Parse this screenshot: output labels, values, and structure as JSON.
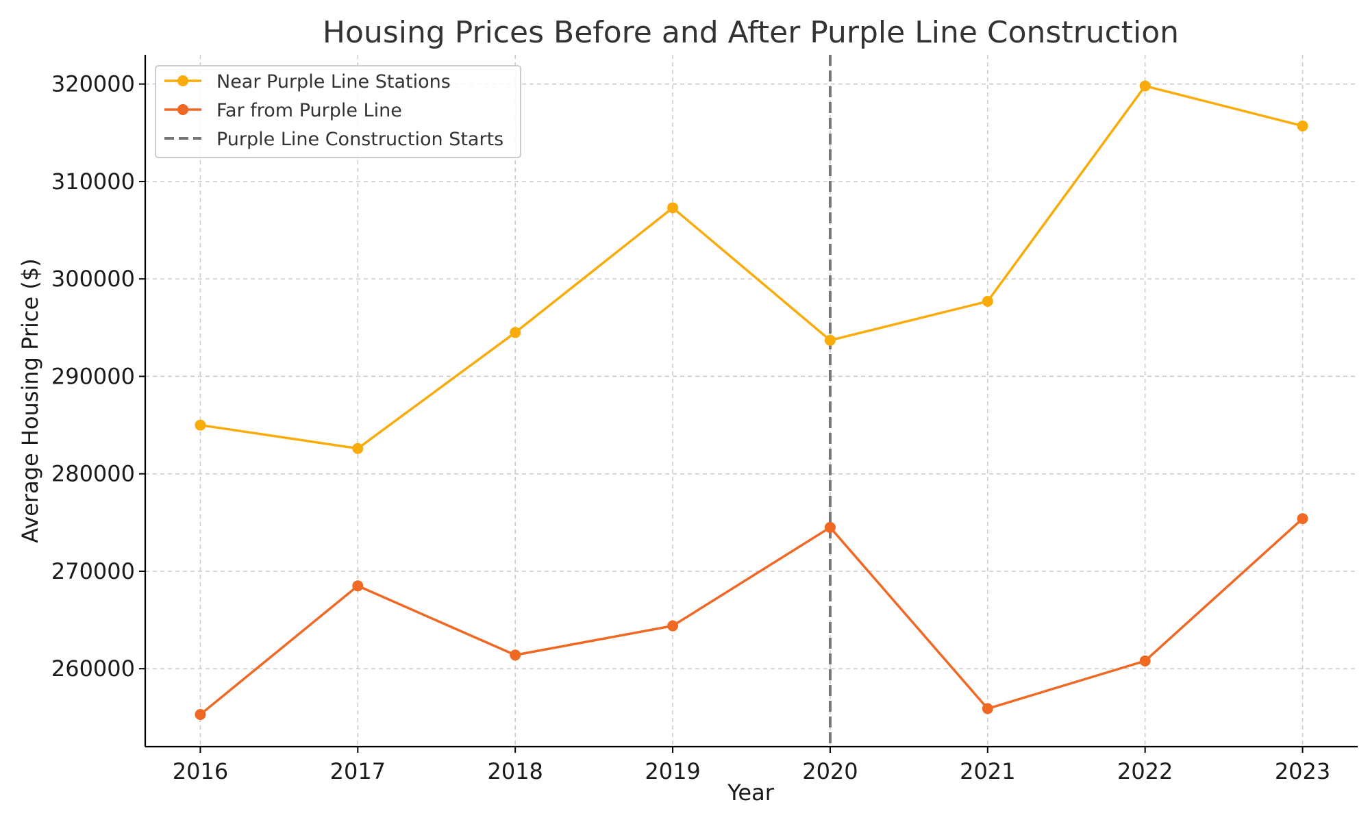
{
  "chart_data": {
    "type": "line",
    "title": "Housing Prices Before and After Purple Line Construction",
    "xlabel": "Year",
    "ylabel": "Average Housing Price ($)",
    "x": [
      2016,
      2017,
      2018,
      2019,
      2020,
      2021,
      2022,
      2023
    ],
    "x_tick_labels": [
      "2016",
      "2017",
      "2018",
      "2019",
      "2020",
      "2021",
      "2022",
      "2023"
    ],
    "y_ticks": [
      260000,
      270000,
      280000,
      290000,
      300000,
      310000,
      320000
    ],
    "y_tick_labels": [
      "260000",
      "270000",
      "280000",
      "290000",
      "300000",
      "310000",
      "320000"
    ],
    "xlim": [
      2015.65,
      2023.35
    ],
    "ylim": [
      252000,
      323000
    ],
    "grid": true,
    "legend_position": "top-left",
    "series": [
      {
        "name": "Near Purple Line Stations",
        "color": "#f9ab09",
        "marker": "circle",
        "values": [
          285000,
          282600,
          294500,
          307300,
          293700,
          297700,
          319800,
          315700
        ]
      },
      {
        "name": "Far from Purple Line",
        "color": "#ef6924",
        "marker": "circle",
        "values": [
          255300,
          268500,
          261400,
          264400,
          274500,
          255900,
          260800,
          275400
        ]
      }
    ],
    "annotations": [
      {
        "type": "vline",
        "x": 2020,
        "name": "Purple Line Construction Starts",
        "color": "#777777",
        "style": "dashed"
      }
    ]
  }
}
